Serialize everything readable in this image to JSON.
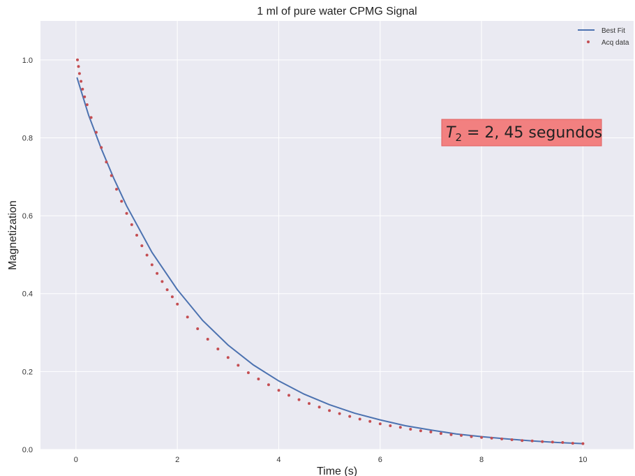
{
  "chart_data": {
    "type": "scatter",
    "title": "1 ml of pure water CPMG Signal",
    "xlabel": "Time (s)",
    "ylabel": "Magnetization",
    "xlim": [
      -0.7,
      11.0
    ],
    "ylim": [
      0.0,
      1.1
    ],
    "xticks": [
      0,
      2,
      4,
      6,
      8,
      10
    ],
    "xtick_labels": [
      "0",
      "2",
      "4",
      "6",
      "8",
      "10"
    ],
    "yticks": [
      0.0,
      0.2,
      0.4,
      0.6,
      0.8,
      1.0
    ],
    "ytick_labels": [
      "0.0",
      "0.2",
      "0.4",
      "0.6",
      "0.8",
      "1.0"
    ],
    "grid": true,
    "legend_position": "top-right",
    "series": [
      {
        "name": "Best Fit",
        "kind": "line",
        "color": "#4c72b0",
        "x": [
          0.02,
          0.25,
          0.5,
          0.75,
          1.0,
          1.5,
          2.0,
          2.5,
          3.0,
          3.5,
          4.0,
          4.5,
          5.0,
          5.5,
          6.0,
          6.5,
          7.0,
          7.5,
          8.0,
          8.5,
          9.0,
          9.5,
          10.0
        ],
        "y": [
          0.955,
          0.858,
          0.772,
          0.695,
          0.625,
          0.506,
          0.41,
          0.331,
          0.268,
          0.217,
          0.176,
          0.142,
          0.115,
          0.093,
          0.076,
          0.061,
          0.05,
          0.04,
          0.033,
          0.027,
          0.022,
          0.018,
          0.015
        ]
      },
      {
        "name": "Acq data",
        "kind": "scatter",
        "color": "#c44e52",
        "x": [
          0.03,
          0.05,
          0.07,
          0.1,
          0.13,
          0.17,
          0.22,
          0.3,
          0.4,
          0.5,
          0.6,
          0.7,
          0.8,
          0.9,
          1.0,
          1.1,
          1.2,
          1.3,
          1.4,
          1.5,
          1.6,
          1.7,
          1.8,
          1.9,
          2.0,
          2.2,
          2.4,
          2.6,
          2.8,
          3.0,
          3.2,
          3.4,
          3.6,
          3.8,
          4.0,
          4.2,
          4.4,
          4.6,
          4.8,
          5.0,
          5.2,
          5.4,
          5.6,
          5.8,
          6.0,
          6.2,
          6.4,
          6.6,
          6.8,
          7.0,
          7.2,
          7.4,
          7.6,
          7.8,
          8.0,
          8.2,
          8.4,
          8.6,
          8.8,
          9.0,
          9.2,
          9.4,
          9.6,
          9.8,
          10.0
        ],
        "y": [
          1.0,
          0.983,
          0.965,
          0.945,
          0.925,
          0.905,
          0.885,
          0.852,
          0.814,
          0.775,
          0.738,
          0.703,
          0.668,
          0.637,
          0.606,
          0.577,
          0.55,
          0.523,
          0.499,
          0.474,
          0.452,
          0.431,
          0.41,
          0.392,
          0.373,
          0.34,
          0.31,
          0.283,
          0.258,
          0.236,
          0.216,
          0.197,
          0.181,
          0.166,
          0.152,
          0.139,
          0.128,
          0.118,
          0.109,
          0.1,
          0.092,
          0.085,
          0.078,
          0.072,
          0.066,
          0.061,
          0.057,
          0.052,
          0.048,
          0.045,
          0.041,
          0.038,
          0.036,
          0.033,
          0.031,
          0.029,
          0.027,
          0.025,
          0.023,
          0.022,
          0.02,
          0.019,
          0.018,
          0.016,
          0.015
        ]
      }
    ],
    "annotation": {
      "subscript_base": "T",
      "subscript": "2",
      "text": " = 2, 45 segundos",
      "background_color": "#f28080"
    },
    "colors": {
      "axes_background": "#eaeaf2",
      "grid": "#ffffff"
    }
  }
}
